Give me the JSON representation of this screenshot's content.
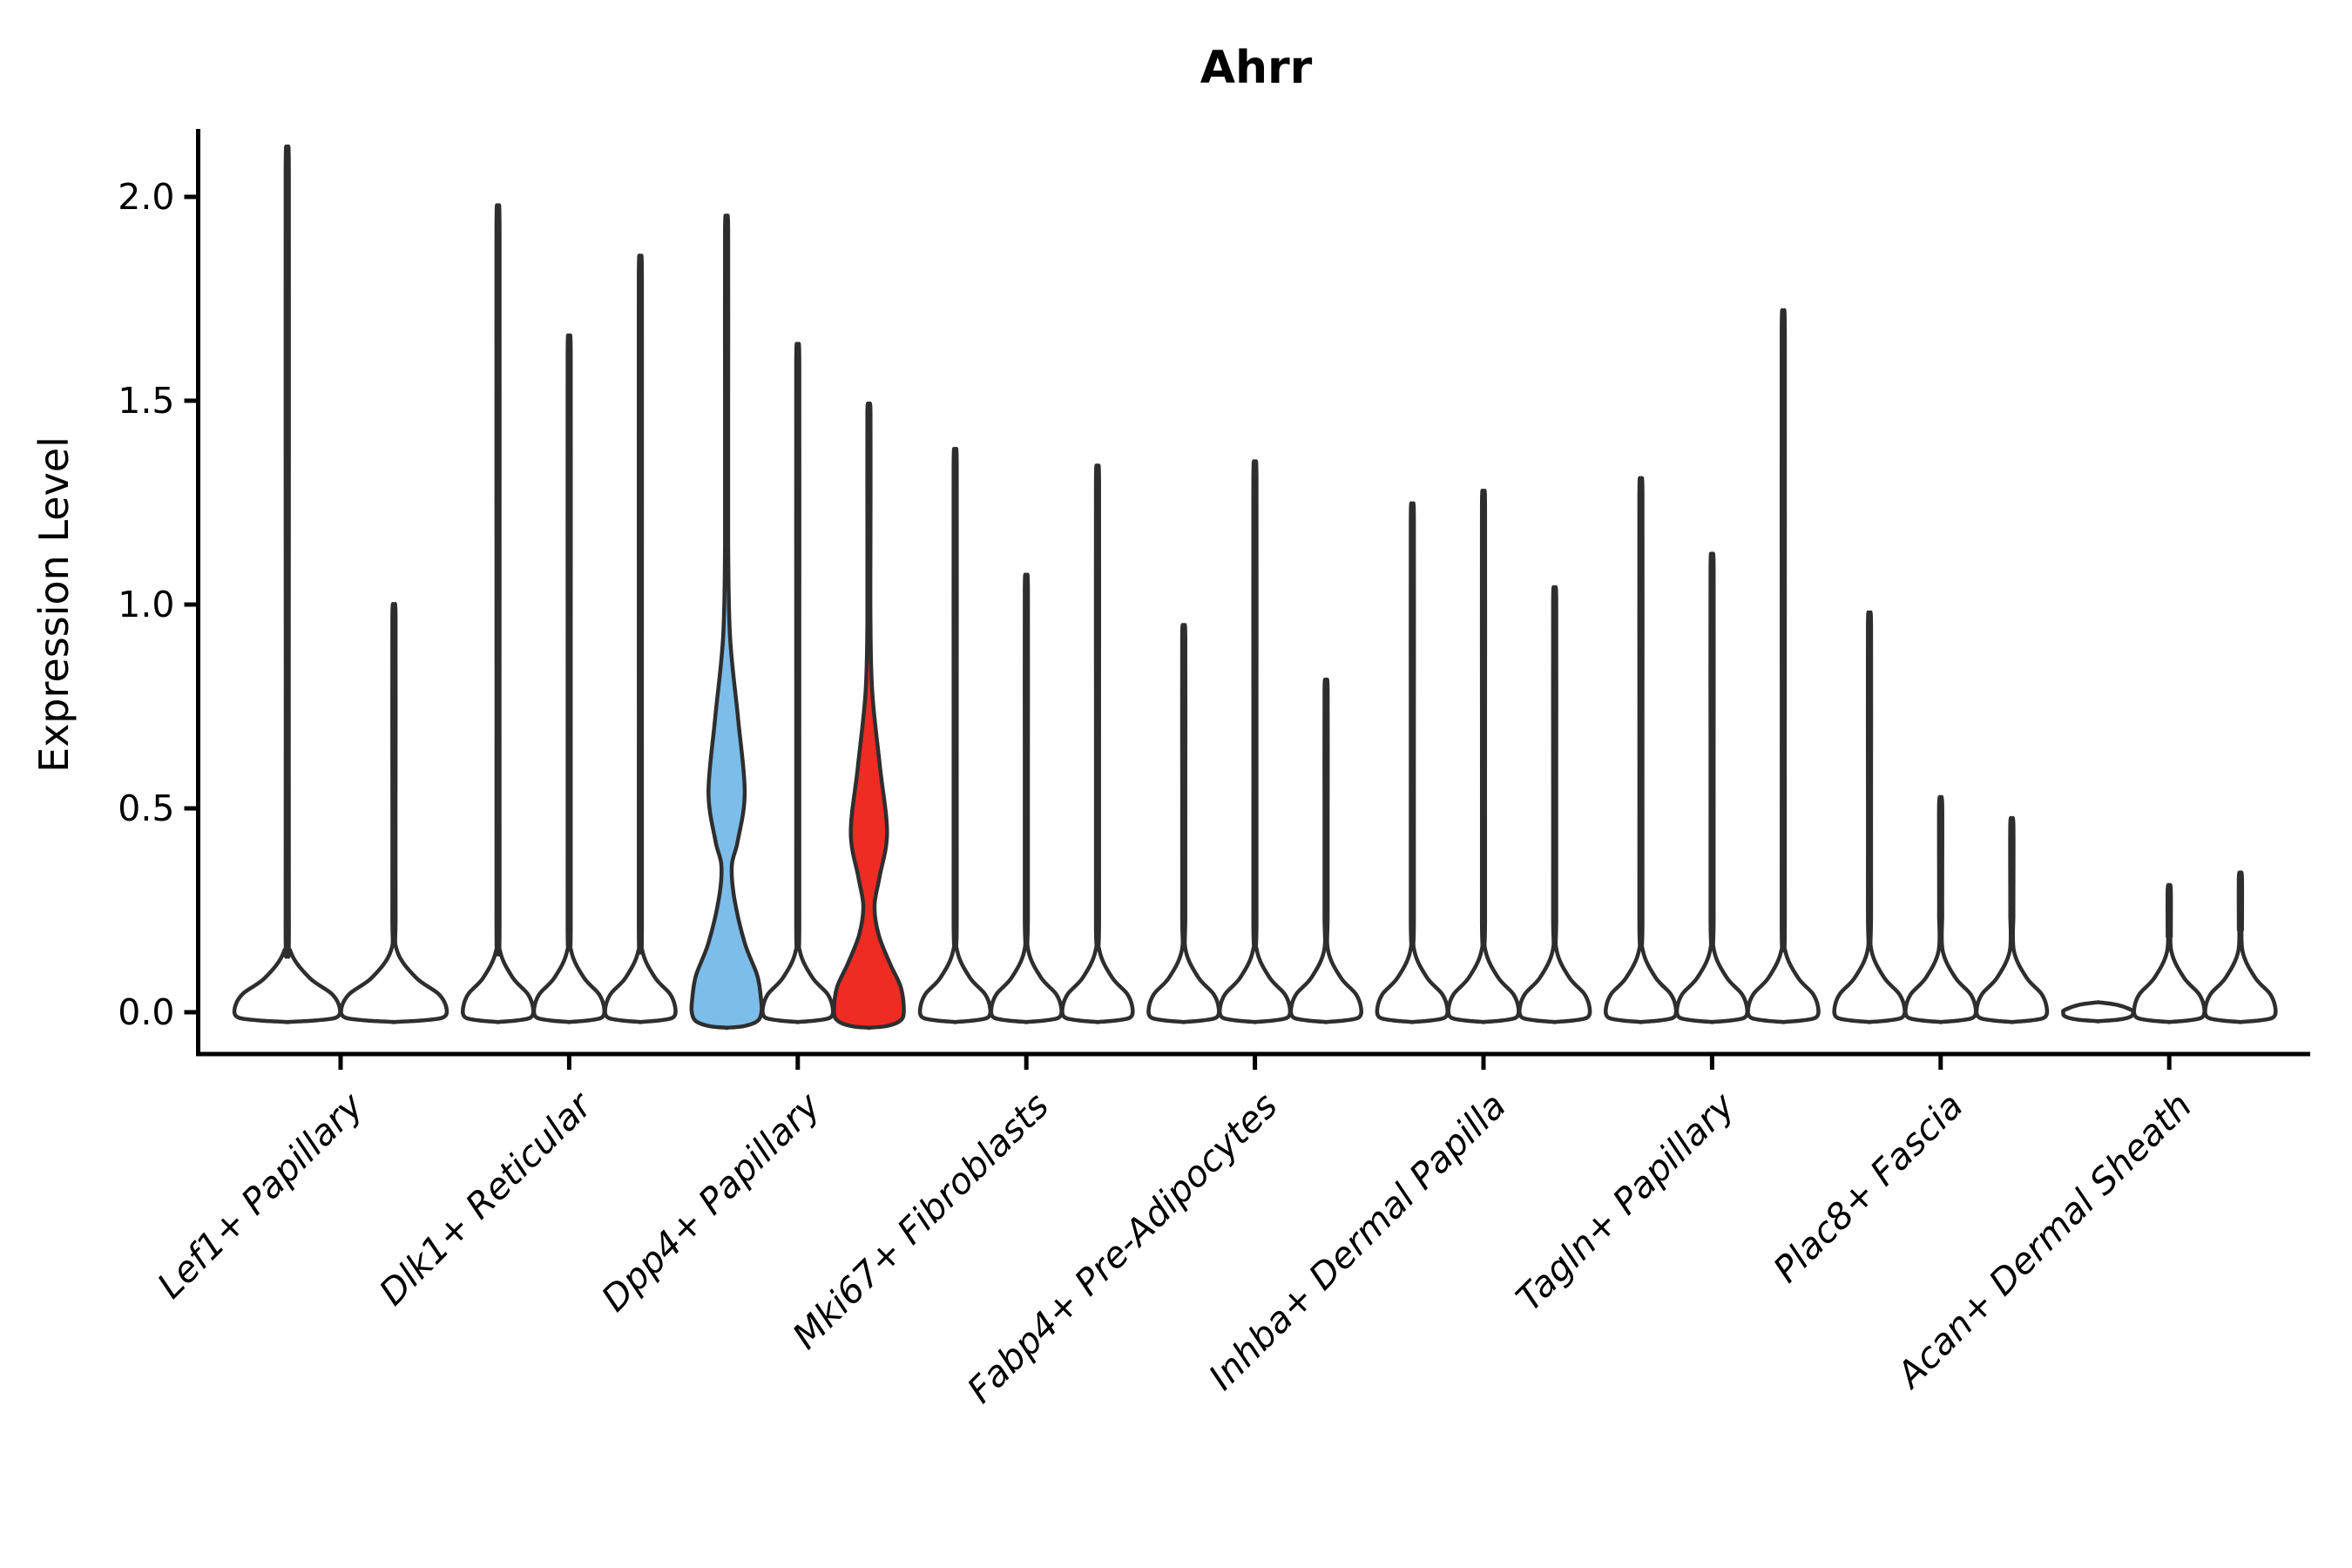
{
  "chart_data": {
    "type": "violin",
    "title": "Ahrr",
    "xlabel": "",
    "ylabel": "Expression Level",
    "yticks": [
      0.0,
      0.5,
      1.0,
      1.5,
      2.0
    ],
    "ylim": [
      -0.07,
      2.17
    ],
    "grid": false,
    "legend": "none",
    "categories": [
      "Lef1+ Papillary",
      "Dlk1+ Reticular",
      "Dpp4+ Papillary",
      "Mki67+ Fibroblasts",
      "Fabp4+ Pre-Adipocytes",
      "Inhba+ Dermal Papilla",
      "Tagln+ Papillary",
      "Plac8+ Fascia",
      "Acan+ Dermal Sheath"
    ],
    "groups": [
      {
        "category": "Lef1+ Papillary",
        "violins": [
          {
            "max": 2.07,
            "color": "plain"
          },
          {
            "max": 0.98,
            "color": "plain"
          }
        ]
      },
      {
        "category": "Dlk1+ Reticular",
        "violins": [
          {
            "max": 1.93,
            "color": "plain"
          },
          {
            "max": 1.62,
            "color": "plain"
          },
          {
            "max": 1.81,
            "color": "plain"
          }
        ]
      },
      {
        "category": "Dpp4+ Papillary",
        "violins": [
          {
            "max": 1.93,
            "color": "blue",
            "profile": [
              [
                1.93,
                0
              ],
              [
                1.92,
                0.02
              ],
              [
                1.5,
                0.026
              ],
              [
                1.15,
                0.04
              ],
              [
                0.92,
                0.1
              ],
              [
                0.72,
                0.33
              ],
              [
                0.54,
                0.52
              ],
              [
                0.42,
                0.32
              ],
              [
                0.36,
                0.15
              ],
              [
                0.28,
                0.22
              ],
              [
                0.17,
                0.52
              ],
              [
                0.09,
                0.88
              ],
              [
                0.03,
                0.99
              ],
              [
                0.0,
                1.0
              ],
              [
                -0.022,
                0.88
              ],
              [
                -0.034,
                0.5
              ],
              [
                -0.038,
                0
              ]
            ]
          },
          {
            "max": 1.6,
            "color": "plain"
          },
          {
            "max": 1.48,
            "color": "red",
            "profile": [
              [
                1.48,
                0
              ],
              [
                1.47,
                0.02
              ],
              [
                1.2,
                0.028
              ],
              [
                0.95,
                0.045
              ],
              [
                0.78,
                0.1
              ],
              [
                0.6,
                0.32
              ],
              [
                0.44,
                0.52
              ],
              [
                0.33,
                0.3
              ],
              [
                0.26,
                0.16
              ],
              [
                0.19,
                0.28
              ],
              [
                0.12,
                0.6
              ],
              [
                0.06,
                0.92
              ],
              [
                0.0,
                1.0
              ],
              [
                -0.022,
                0.88
              ],
              [
                -0.034,
                0.5
              ],
              [
                -0.038,
                0
              ]
            ]
          }
        ]
      },
      {
        "category": "Mki67+ Fibroblasts",
        "violins": [
          {
            "max": 1.35,
            "color": "plain"
          },
          {
            "max": 1.05,
            "color": "plain"
          },
          {
            "max": 1.31,
            "color": "plain"
          }
        ]
      },
      {
        "category": "Fabp4+ Pre-Adipocytes",
        "violins": [
          {
            "max": 0.93,
            "color": "plain"
          },
          {
            "max": 1.32,
            "color": "plain"
          },
          {
            "max": 0.8,
            "color": "plain"
          }
        ]
      },
      {
        "category": "Inhba+ Dermal Papilla",
        "violins": [
          {
            "max": 1.22,
            "color": "plain"
          },
          {
            "max": 1.25,
            "color": "plain"
          },
          {
            "max": 1.02,
            "color": "plain"
          }
        ]
      },
      {
        "category": "Tagln+ Papillary",
        "violins": [
          {
            "max": 1.28,
            "color": "plain"
          },
          {
            "max": 1.1,
            "color": "plain"
          },
          {
            "max": 1.68,
            "color": "plain"
          }
        ]
      },
      {
        "category": "Plac8+ Fascia",
        "violins": [
          {
            "max": 0.96,
            "color": "plain"
          },
          {
            "max": 0.52,
            "color": "plain"
          },
          {
            "max": 0.47,
            "color": "plain"
          }
        ]
      },
      {
        "category": "Acan+ Dermal Sheath",
        "violins": [
          {
            "max": 0.0,
            "color": "plain"
          },
          {
            "max": 0.31,
            "color": "plain"
          },
          {
            "max": 0.34,
            "color": "plain"
          }
        ]
      }
    ],
    "colors": {
      "blue": "#7cbde9",
      "red": "#ee2c23",
      "plain_fill": "#ffffff",
      "violin_outline": "#2e2e2e",
      "axis": "#000000",
      "text": "#000000",
      "background": "#ffffff"
    }
  }
}
